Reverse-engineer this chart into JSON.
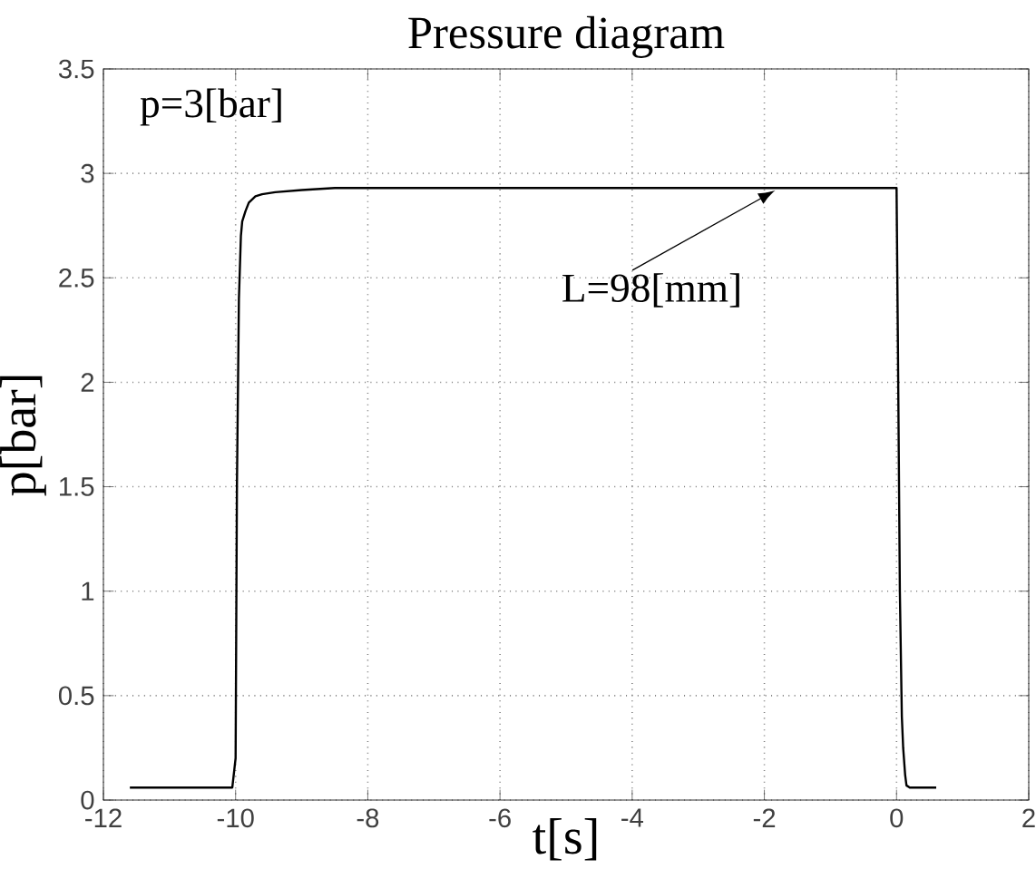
{
  "chart_data": {
    "type": "line",
    "title": "Pressure diagram",
    "xlabel": "t[s]",
    "ylabel": "p[bar]",
    "x": [
      -11.6,
      -11.0,
      -10.5,
      -10.05,
      -10.0,
      -9.98,
      -9.95,
      -9.92,
      -9.9,
      -9.85,
      -9.8,
      -9.7,
      -9.6,
      -9.4,
      -9.0,
      -8.5,
      -8.0,
      -6.0,
      -4.0,
      -2.0,
      -1.0,
      0.0,
      0.02,
      0.05,
      0.08,
      0.1,
      0.13,
      0.15,
      0.2,
      0.3,
      0.6
    ],
    "series": [
      {
        "color": "#000000",
        "values": [
          0.06,
          0.06,
          0.06,
          0.06,
          0.2,
          1.5,
          2.4,
          2.7,
          2.77,
          2.82,
          2.86,
          2.89,
          2.9,
          2.91,
          2.92,
          2.93,
          2.93,
          2.93,
          2.93,
          2.93,
          2.93,
          2.93,
          2.2,
          1.0,
          0.4,
          0.25,
          0.12,
          0.07,
          0.06,
          0.06,
          0.06
        ]
      }
    ],
    "xlim": [
      -12,
      2
    ],
    "ylim": [
      0,
      3.5
    ],
    "xticks": [
      -12,
      -10,
      -8,
      -6,
      -4,
      -2,
      0,
      2
    ],
    "yticks": [
      0,
      0.5,
      1,
      1.5,
      2,
      2.5,
      3,
      3.5
    ],
    "grid": true,
    "marker": "none",
    "line_style": "solid",
    "annotations": [
      "p=3[bar]",
      {
        "text": "L=98[mm]",
        "x": -1.8,
        "y": 2.93
      }
    ]
  }
}
